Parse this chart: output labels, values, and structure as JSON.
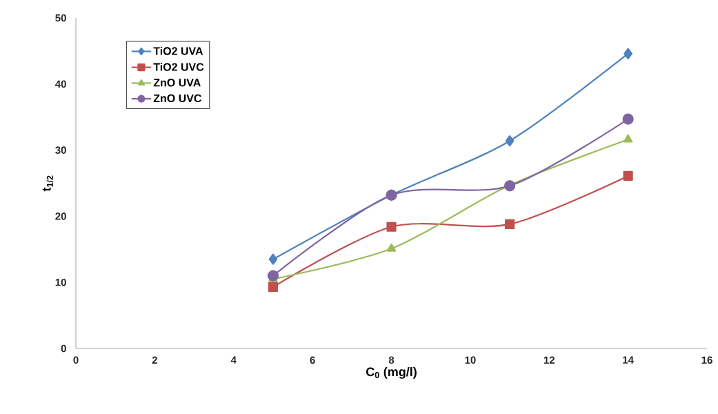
{
  "chart_data": {
    "type": "line",
    "xlabel": "C$_{0}$ (mg/l)",
    "ylabel": "t$_{1/2}$",
    "x": [
      5,
      8,
      11,
      14
    ],
    "series": [
      {
        "name": "TiO2 UVA",
        "color": "#4f81bd",
        "marker": "diamond",
        "values": [
          13.5,
          23.2,
          31.4,
          44.6
        ]
      },
      {
        "name": "TiO2 UVC",
        "color": "#c0504d",
        "marker": "square",
        "values": [
          9.3,
          18.4,
          18.8,
          26.1
        ]
      },
      {
        "name": "ZnO UVA",
        "color": "#9bbb59",
        "marker": "triangle",
        "values": [
          10.5,
          15.1,
          24.7,
          31.6
        ]
      },
      {
        "name": "ZnO UVC",
        "color": "#8064a2",
        "marker": "circle",
        "values": [
          11.0,
          23.2,
          24.6,
          34.7
        ]
      }
    ],
    "xlim": [
      0,
      16
    ],
    "xticks": [
      0,
      2,
      4,
      6,
      8,
      10,
      12,
      14,
      16
    ],
    "ylim": [
      0,
      50
    ],
    "yticks": [
      0,
      10,
      20,
      30,
      40,
      50
    ],
    "grid": false,
    "legend": "top left",
    "line_style": "solid"
  }
}
